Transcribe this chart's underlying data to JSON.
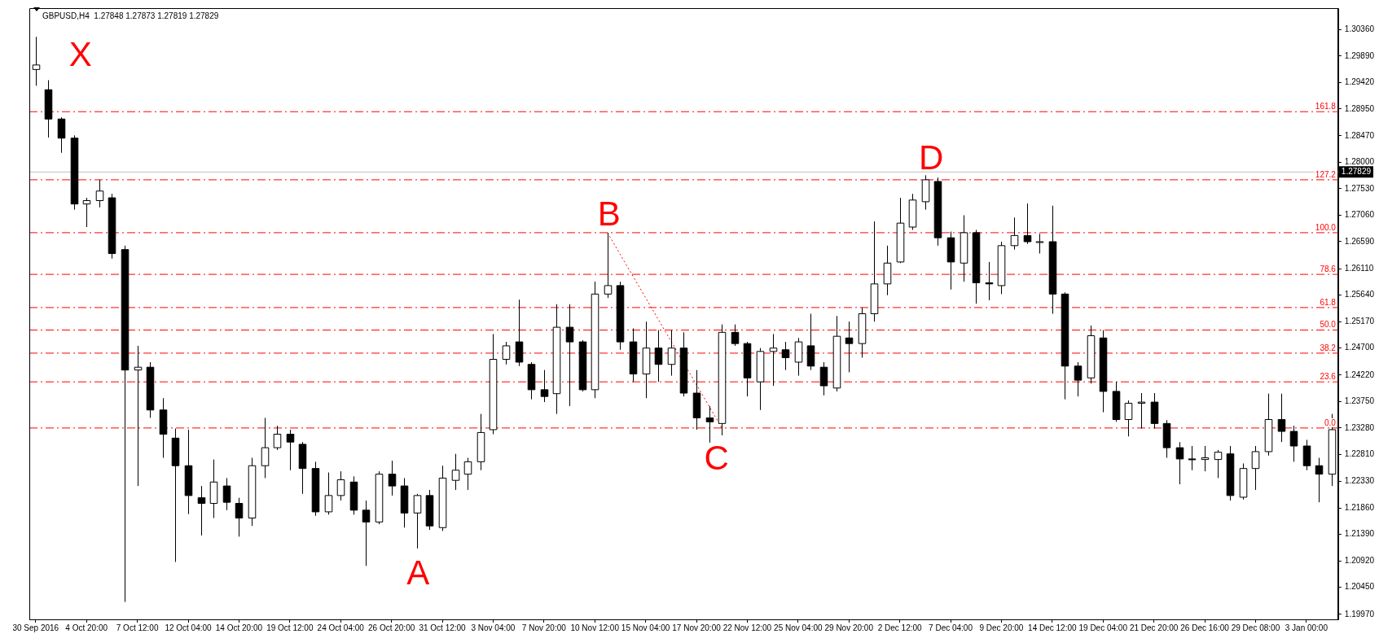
{
  "chart_data": {
    "type": "candlestick",
    "title": "GBPUSD,H4  1.27848 1.27873 1.27819 1.27829",
    "categories": [
      "30 Sep 2016",
      null,
      null,
      null,
      "4 Oct 20:00",
      null,
      null,
      null,
      "7 Oct 12:00",
      null,
      null,
      null,
      "12 Oct 04:00",
      null,
      null,
      null,
      "14 Oct 20:00",
      null,
      null,
      null,
      "19 Oct 12:00",
      null,
      null,
      null,
      "24 Oct 04:00",
      null,
      null,
      null,
      "26 Oct 20:00",
      null,
      null,
      null,
      "31 Oct 12:00",
      null,
      null,
      null,
      "3 Nov 04:00",
      null,
      null,
      null,
      "7 Nov 20:00",
      null,
      null,
      null,
      "10 Nov 12:00",
      null,
      null,
      null,
      "15 Nov 04:00",
      null,
      null,
      null,
      "17 Nov 20:00",
      null,
      null,
      null,
      "22 Nov 12:00",
      null,
      null,
      null,
      "25 Nov 04:00",
      null,
      null,
      null,
      "29 Nov 20:00",
      null,
      null,
      null,
      "2 Dec 12:00",
      null,
      null,
      null,
      "7 Dec 04:00",
      null,
      null,
      null,
      "9 Dec 20:00",
      null,
      null,
      null,
      "14 Dec 12:00",
      null,
      null,
      null,
      "19 Dec 04:00",
      null,
      null,
      null,
      "21 Dec 20:00",
      null,
      null,
      null,
      "26 Dec 16:00",
      null,
      null,
      null,
      "29 Dec 08:00",
      null,
      null,
      null,
      "3 Jan 00:00",
      null,
      null
    ],
    "ylim": [
      1.1988,
      1.3074
    ],
    "yticks": [
      {
        "value": 1.3036,
        "label": "1.30360"
      },
      {
        "value": 1.2989,
        "label": "1.29890"
      },
      {
        "value": 1.2942,
        "label": "1.29420"
      },
      {
        "value": 1.2895,
        "label": "1.28950"
      },
      {
        "value": 1.2847,
        "label": "1.28470"
      },
      {
        "value": 1.28,
        "label": "1.28000"
      },
      {
        "value": 1.2753,
        "label": "1.27530"
      },
      {
        "value": 1.2706,
        "label": "1.27060"
      },
      {
        "value": 1.2659,
        "label": "1.26590"
      },
      {
        "value": 1.2611,
        "label": "1.26110"
      },
      {
        "value": 1.2564,
        "label": "1.25640"
      },
      {
        "value": 1.2517,
        "label": "1.25170"
      },
      {
        "value": 1.247,
        "label": "1.24700"
      },
      {
        "value": 1.2422,
        "label": "1.24220"
      },
      {
        "value": 1.2375,
        "label": "1.23750"
      },
      {
        "value": 1.2328,
        "label": "1.23280"
      },
      {
        "value": 1.2281,
        "label": "1.22810"
      },
      {
        "value": 1.2233,
        "label": "1.22330"
      },
      {
        "value": 1.2186,
        "label": "1.21860"
      },
      {
        "value": 1.2139,
        "label": "1.21390"
      },
      {
        "value": 1.2092,
        "label": "1.20920"
      },
      {
        "value": 1.2045,
        "label": "1.20450"
      },
      {
        "value": 1.1997,
        "label": "1.19970"
      }
    ],
    "series": [
      {
        "color": "#000000",
        "colors": [
          "#ffffff",
          "#000000",
          "#000000",
          "#000000",
          "#ffffff",
          "#ffffff",
          "#000000",
          "#000000",
          "#ffffff",
          "#000000",
          "#000000",
          "#000000",
          "#000000",
          "#000000",
          "#ffffff",
          "#000000",
          "#000000",
          "#ffffff",
          "#ffffff",
          "#ffffff",
          "#000000",
          "#000000",
          "#000000",
          "#ffffff",
          "#ffffff",
          "#000000",
          "#000000",
          "#ffffff",
          "#000000",
          "#000000",
          "#ffffff",
          "#000000",
          "#ffffff",
          "#ffffff",
          "#ffffff",
          "#ffffff",
          "#ffffff",
          "#ffffff",
          "#000000",
          "#000000",
          "#000000",
          "#ffffff",
          "#000000",
          "#000000",
          "#ffffff",
          "#ffffff",
          "#000000",
          "#000000",
          "#ffffff",
          "#000000",
          "#ffffff",
          "#000000",
          "#000000",
          "#000000",
          "#ffffff",
          "#000000",
          "#000000",
          "#ffffff",
          "#ffffff",
          "#000000",
          "#ffffff",
          "#000000",
          "#000000",
          "#ffffff",
          "#000000",
          "#ffffff",
          "#ffffff",
          "#ffffff",
          "#ffffff",
          "#ffffff",
          "#ffffff",
          "#000000",
          "#000000",
          "#ffffff",
          "#000000",
          "#000000",
          "#ffffff",
          "#ffffff",
          "#000000",
          "#ffffff",
          "#000000",
          "#000000",
          "#000000",
          "#ffffff",
          "#000000",
          "#000000",
          "#ffffff",
          "#ffffff",
          "#000000",
          "#000000",
          "#000000",
          "#000000",
          "#ffffff",
          "#ffffff",
          "#000000",
          "#ffffff",
          "#ffffff",
          "#ffffff",
          "#000000",
          "#000000",
          "#000000",
          "#000000",
          "#ffffff"
        ],
        "ohlc": [
          [
            1.2965,
            1.3023,
            1.2936,
            1.2973
          ],
          [
            1.2929,
            1.2946,
            1.2844,
            1.2877
          ],
          [
            1.2877,
            1.288,
            1.2817,
            1.2843
          ],
          [
            1.2843,
            1.2848,
            1.2716,
            1.2726
          ],
          [
            1.2726,
            1.2737,
            1.2685,
            1.2732
          ],
          [
            1.2732,
            1.2769,
            1.272,
            1.2749
          ],
          [
            1.2737,
            1.2744,
            1.2629,
            1.2638
          ],
          [
            1.2645,
            1.2652,
            1.2019,
            1.2431
          ],
          [
            1.2431,
            1.2474,
            1.2225,
            1.2436
          ],
          [
            1.2436,
            1.2445,
            1.2346,
            1.236
          ],
          [
            1.236,
            1.2381,
            1.2275,
            1.2317
          ],
          [
            1.231,
            1.2327,
            1.209,
            1.2261
          ],
          [
            1.2261,
            1.2325,
            1.2175,
            1.2208
          ],
          [
            1.2204,
            1.2225,
            1.2137,
            1.2194
          ],
          [
            1.2194,
            1.2272,
            1.2168,
            1.2232
          ],
          [
            1.2225,
            1.2239,
            1.2182,
            1.2196
          ],
          [
            1.2194,
            1.2204,
            1.2135,
            1.2168
          ],
          [
            1.2168,
            1.2275,
            1.2154,
            1.2261
          ],
          [
            1.2261,
            1.2346,
            1.2239,
            1.2293
          ],
          [
            1.2293,
            1.2332,
            1.2289,
            1.2317
          ],
          [
            1.2317,
            1.2325,
            1.2253,
            1.2303
          ],
          [
            1.2299,
            1.2303,
            1.2211,
            1.2256
          ],
          [
            1.2256,
            1.2268,
            1.2172,
            1.2179
          ],
          [
            1.2179,
            1.2249,
            1.2174,
            1.2208
          ],
          [
            1.2208,
            1.2251,
            1.2199,
            1.2236
          ],
          [
            1.2232,
            1.2242,
            1.2174,
            1.2182
          ],
          [
            1.2182,
            1.2199,
            1.2083,
            1.2161
          ],
          [
            1.2161,
            1.2251,
            1.2157,
            1.2246
          ],
          [
            1.2246,
            1.227,
            1.2208,
            1.2225
          ],
          [
            1.2225,
            1.2239,
            1.2151,
            1.2177
          ],
          [
            1.2177,
            1.2211,
            1.2114,
            1.2208
          ],
          [
            1.2208,
            1.2218,
            1.2147,
            1.2154
          ],
          [
            1.2151,
            1.2261,
            1.2145,
            1.2239
          ],
          [
            1.2235,
            1.2282,
            1.2218,
            1.2253
          ],
          [
            1.2246,
            1.2275,
            1.2218,
            1.2268
          ],
          [
            1.2268,
            1.2353,
            1.2253,
            1.232
          ],
          [
            1.2325,
            1.2495,
            1.2317,
            1.245
          ],
          [
            1.245,
            1.2481,
            1.2441,
            1.2474
          ],
          [
            1.2481,
            1.2556,
            1.2438,
            1.2445
          ],
          [
            1.2441,
            1.2445,
            1.2379,
            1.2396
          ],
          [
            1.2396,
            1.2431,
            1.2374,
            1.2384
          ],
          [
            1.2389,
            1.2548,
            1.2353,
            1.2507
          ],
          [
            1.2507,
            1.2548,
            1.2367,
            1.2481
          ],
          [
            1.2481,
            1.2484,
            1.2393,
            1.2396
          ],
          [
            1.2396,
            1.2588,
            1.2381,
            1.2566
          ],
          [
            1.2566,
            1.2675,
            1.2559,
            1.2581
          ],
          [
            1.2581,
            1.2588,
            1.2467,
            1.2481
          ],
          [
            1.2481,
            1.2505,
            1.241,
            1.2424
          ],
          [
            1.2424,
            1.2517,
            1.2381,
            1.247
          ],
          [
            1.247,
            1.2502,
            1.241,
            1.2441
          ],
          [
            1.2441,
            1.2502,
            1.2421,
            1.247
          ],
          [
            1.247,
            1.2498,
            1.2384,
            1.239
          ],
          [
            1.239,
            1.2431,
            1.2325,
            1.2346
          ],
          [
            1.2346,
            1.2367,
            1.2302,
            1.2339
          ],
          [
            1.2336,
            1.2512,
            1.2315,
            1.2498
          ],
          [
            1.2498,
            1.2512,
            1.2474,
            1.2478
          ],
          [
            1.2478,
            1.2481,
            1.2384,
            1.2417
          ],
          [
            1.241,
            1.247,
            1.236,
            1.2464
          ],
          [
            1.2464,
            1.2495,
            1.2403,
            1.247
          ],
          [
            1.2467,
            1.2481,
            1.2431,
            1.2453
          ],
          [
            1.2445,
            1.2488,
            1.2421,
            1.2481
          ],
          [
            1.2474,
            1.2531,
            1.2431,
            1.2438
          ],
          [
            1.2436,
            1.2445,
            1.2386,
            1.2403
          ],
          [
            1.2399,
            1.2527,
            1.2393,
            1.2491
          ],
          [
            1.2488,
            1.2517,
            1.2427,
            1.2478
          ],
          [
            1.2478,
            1.2542,
            1.2453,
            1.2531
          ],
          [
            1.2531,
            1.2695,
            1.2517,
            1.2584
          ],
          [
            1.2584,
            1.2652,
            1.2564,
            1.2621
          ],
          [
            1.2623,
            1.2737,
            1.2621,
            1.2692
          ],
          [
            1.2685,
            1.2744,
            1.268,
            1.2733
          ],
          [
            1.273,
            1.2777,
            1.2716,
            1.2769
          ],
          [
            1.2766,
            1.2773,
            1.2652,
            1.2666
          ],
          [
            1.2666,
            1.2677,
            1.2574,
            1.2623
          ],
          [
            1.2621,
            1.2706,
            1.2588,
            1.2675
          ],
          [
            1.2675,
            1.268,
            1.2549,
            1.2586
          ],
          [
            1.2586,
            1.2623,
            1.2555,
            1.2584
          ],
          [
            1.2581,
            1.2659,
            1.2566,
            1.2652
          ],
          [
            1.2652,
            1.2702,
            1.2645,
            1.267
          ],
          [
            1.267,
            1.2727,
            1.2655,
            1.2659
          ],
          [
            1.2659,
            1.2673,
            1.2638,
            1.2659
          ],
          [
            1.2659,
            1.2723,
            1.2531,
            1.2566
          ],
          [
            1.2566,
            1.2569,
            1.2379,
            1.2438
          ],
          [
            1.2438,
            1.2445,
            1.2384,
            1.2413
          ],
          [
            1.2417,
            1.251,
            1.2407,
            1.2492
          ],
          [
            1.2488,
            1.2502,
            1.2356,
            1.2393
          ],
          [
            1.2393,
            1.241,
            1.2339,
            1.2343
          ],
          [
            1.2343,
            1.2377,
            1.2313,
            1.2372
          ],
          [
            1.2372,
            1.239,
            1.2327,
            1.2374
          ],
          [
            1.2374,
            1.239,
            1.2327,
            1.2336
          ],
          [
            1.2336,
            1.2342,
            1.2275,
            1.2293
          ],
          [
            1.2293,
            1.2303,
            1.2228,
            1.2273
          ],
          [
            1.2273,
            1.2296,
            1.2253,
            1.2272
          ],
          [
            1.2272,
            1.2296,
            1.2251,
            1.2275
          ],
          [
            1.2272,
            1.2289,
            1.2239,
            1.2285
          ],
          [
            1.2282,
            1.2296,
            1.2199,
            1.2208
          ],
          [
            1.2205,
            1.2265,
            1.2201,
            1.2256
          ],
          [
            1.2256,
            1.2296,
            1.2218,
            1.2286
          ],
          [
            1.2286,
            1.2389,
            1.2279,
            1.2343
          ],
          [
            1.2343,
            1.2389,
            1.2303,
            1.2322
          ],
          [
            1.2322,
            1.2332,
            1.2268,
            1.2296
          ],
          [
            1.2296,
            1.2307,
            1.2253,
            1.2261
          ],
          [
            1.2261,
            1.2275,
            1.2196,
            1.2246
          ],
          [
            1.2246,
            1.2353,
            1.2225,
            1.2325
          ]
        ]
      },
      {
        "type": "line",
        "color": "#ff0000",
        "line_style": "dotted",
        "marker": "none",
        "values": [
          null,
          null,
          null,
          null,
          null,
          null,
          null,
          null,
          null,
          null,
          null,
          null,
          null,
          null,
          null,
          null,
          null,
          null,
          null,
          null,
          null,
          null,
          null,
          null,
          null,
          null,
          null,
          null,
          null,
          null,
          null,
          null,
          null,
          null,
          null,
          null,
          null,
          null,
          null,
          null,
          null,
          null,
          null,
          null,
          null,
          1.2675,
          null,
          null,
          null,
          null,
          null,
          null,
          null,
          null,
          1.2328,
          null,
          null,
          null,
          null,
          null,
          null,
          null,
          null,
          null,
          null,
          null,
          null,
          null,
          null,
          null,
          null,
          null,
          null,
          null,
          null,
          null,
          null,
          null,
          null,
          null,
          null,
          null,
          null,
          null,
          null,
          null,
          null,
          null,
          null,
          null,
          null,
          null,
          null,
          null,
          null,
          null,
          null,
          null,
          null,
          null,
          null,
          null,
          null
        ]
      }
    ],
    "ref_lines": [
      {
        "axis": "y",
        "value": 1.289,
        "color": "#ff0000",
        "line_style": "dashed"
      },
      {
        "axis": "y",
        "value": 1.2769,
        "color": "#ff0000",
        "line_style": "dashed"
      },
      {
        "axis": "y",
        "value": 1.2675,
        "color": "#ff0000",
        "line_style": "dashed"
      },
      {
        "axis": "y",
        "value": 1.2601,
        "color": "#ff0000",
        "line_style": "dashed"
      },
      {
        "axis": "y",
        "value": 1.2542,
        "color": "#ff0000",
        "line_style": "dashed"
      },
      {
        "axis": "y",
        "value": 1.2502,
        "color": "#ff0000",
        "line_style": "dashed"
      },
      {
        "axis": "y",
        "value": 1.2461,
        "color": "#ff0000",
        "line_style": "dashed"
      },
      {
        "axis": "y",
        "value": 1.241,
        "color": "#ff0000",
        "line_style": "dashed"
      },
      {
        "axis": "y",
        "value": 1.2328,
        "color": "#ff0000",
        "line_style": "dashed"
      },
      {
        "axis": "y",
        "value": 1.27829,
        "label": "1.27829",
        "color": "#c0c0c0",
        "line_style": "solid"
      }
    ],
    "annotations": [
      "X",
      "A",
      "B",
      "C",
      "D",
      {
        "text": "161.8",
        "y": 1.289
      },
      {
        "text": "127.2",
        "y": 1.2769
      },
      {
        "text": "100.0",
        "y": 1.2675
      },
      {
        "text": "78.6",
        "y": 1.2601
      },
      {
        "text": "61.8",
        "y": 1.2542
      },
      {
        "text": "50.0",
        "y": 1.2502
      },
      {
        "text": "38.2",
        "y": 1.2461
      },
      {
        "text": "23.6",
        "y": 1.241
      },
      {
        "text": "0.0",
        "y": 1.2328
      }
    ]
  }
}
